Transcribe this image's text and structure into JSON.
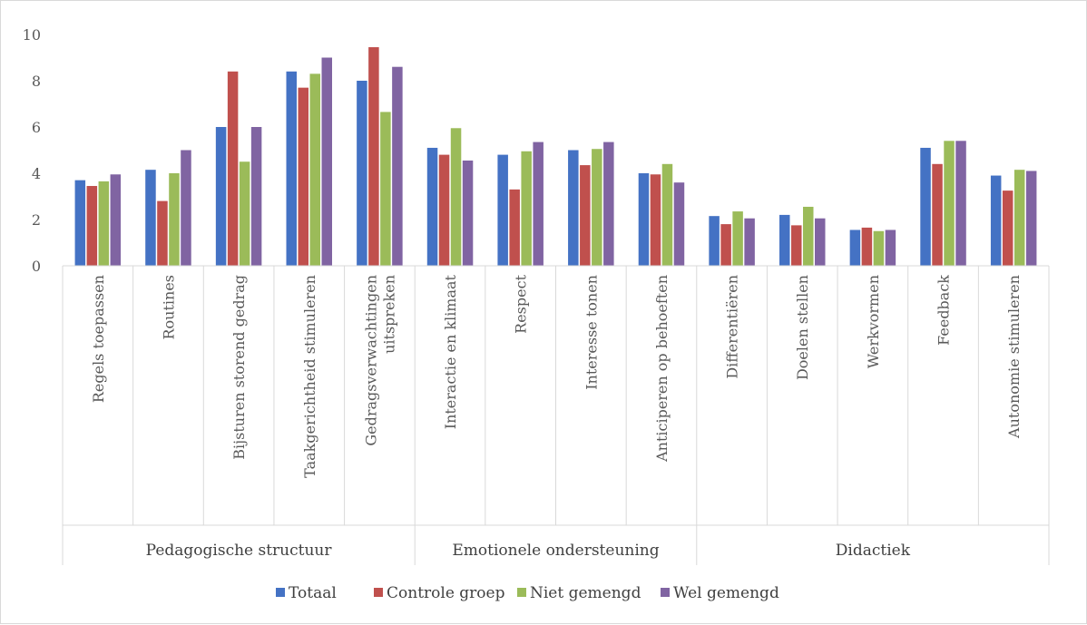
{
  "chart_data": {
    "type": "bar",
    "title": "",
    "xlabel": "",
    "ylabel": "",
    "ylim": [
      0,
      10
    ],
    "yticks": [
      "0",
      "2",
      "4",
      "6",
      "8",
      "10"
    ],
    "grid": false,
    "legend_position": "bottom",
    "groups": [
      {
        "label": "Pedagogische structuur",
        "size": 5
      },
      {
        "label": "Emotionele ondersteuning",
        "size": 4
      },
      {
        "label": "Didactiek",
        "size": 5
      }
    ],
    "categories": [
      [
        "Regels toepassen"
      ],
      [
        "Routines"
      ],
      [
        "Bijsturen storend gedrag"
      ],
      [
        "Taakgerichtheid stimuleren"
      ],
      [
        "Gedragsverwachtingen",
        "uitspreken"
      ],
      [
        "Interactie en klimaat"
      ],
      [
        "Respect"
      ],
      [
        "Interesse tonen"
      ],
      [
        "Anticiperen op behoeften"
      ],
      [
        "Differentiëren"
      ],
      [
        "Doelen stellen"
      ],
      [
        "Werkvormen"
      ],
      [
        "Feedback"
      ],
      [
        "Autonomie stimuleren"
      ]
    ],
    "series": [
      {
        "name": "Totaal",
        "color": "#4472c4",
        "values": [
          3.7,
          4.15,
          6.0,
          8.4,
          8.0,
          5.1,
          4.8,
          5.0,
          4.0,
          2.15,
          2.2,
          1.55,
          5.1,
          3.9
        ]
      },
      {
        "name": "Controle groep",
        "color": "#c0504d",
        "values": [
          3.45,
          2.8,
          8.4,
          7.7,
          9.45,
          4.8,
          3.3,
          4.35,
          3.95,
          1.8,
          1.75,
          1.65,
          4.4,
          3.25
        ]
      },
      {
        "name": "Niet gemengd",
        "color": "#9bbb59",
        "values": [
          3.65,
          4.0,
          4.5,
          8.3,
          6.65,
          5.95,
          4.95,
          5.05,
          4.4,
          2.35,
          2.55,
          1.5,
          5.4,
          4.15
        ]
      },
      {
        "name": "Wel gemengd",
        "color": "#8064a2",
        "values": [
          3.95,
          5.0,
          6.0,
          9.0,
          8.6,
          4.55,
          5.35,
          5.35,
          3.6,
          2.05,
          2.05,
          1.55,
          5.4,
          4.1
        ]
      }
    ]
  }
}
